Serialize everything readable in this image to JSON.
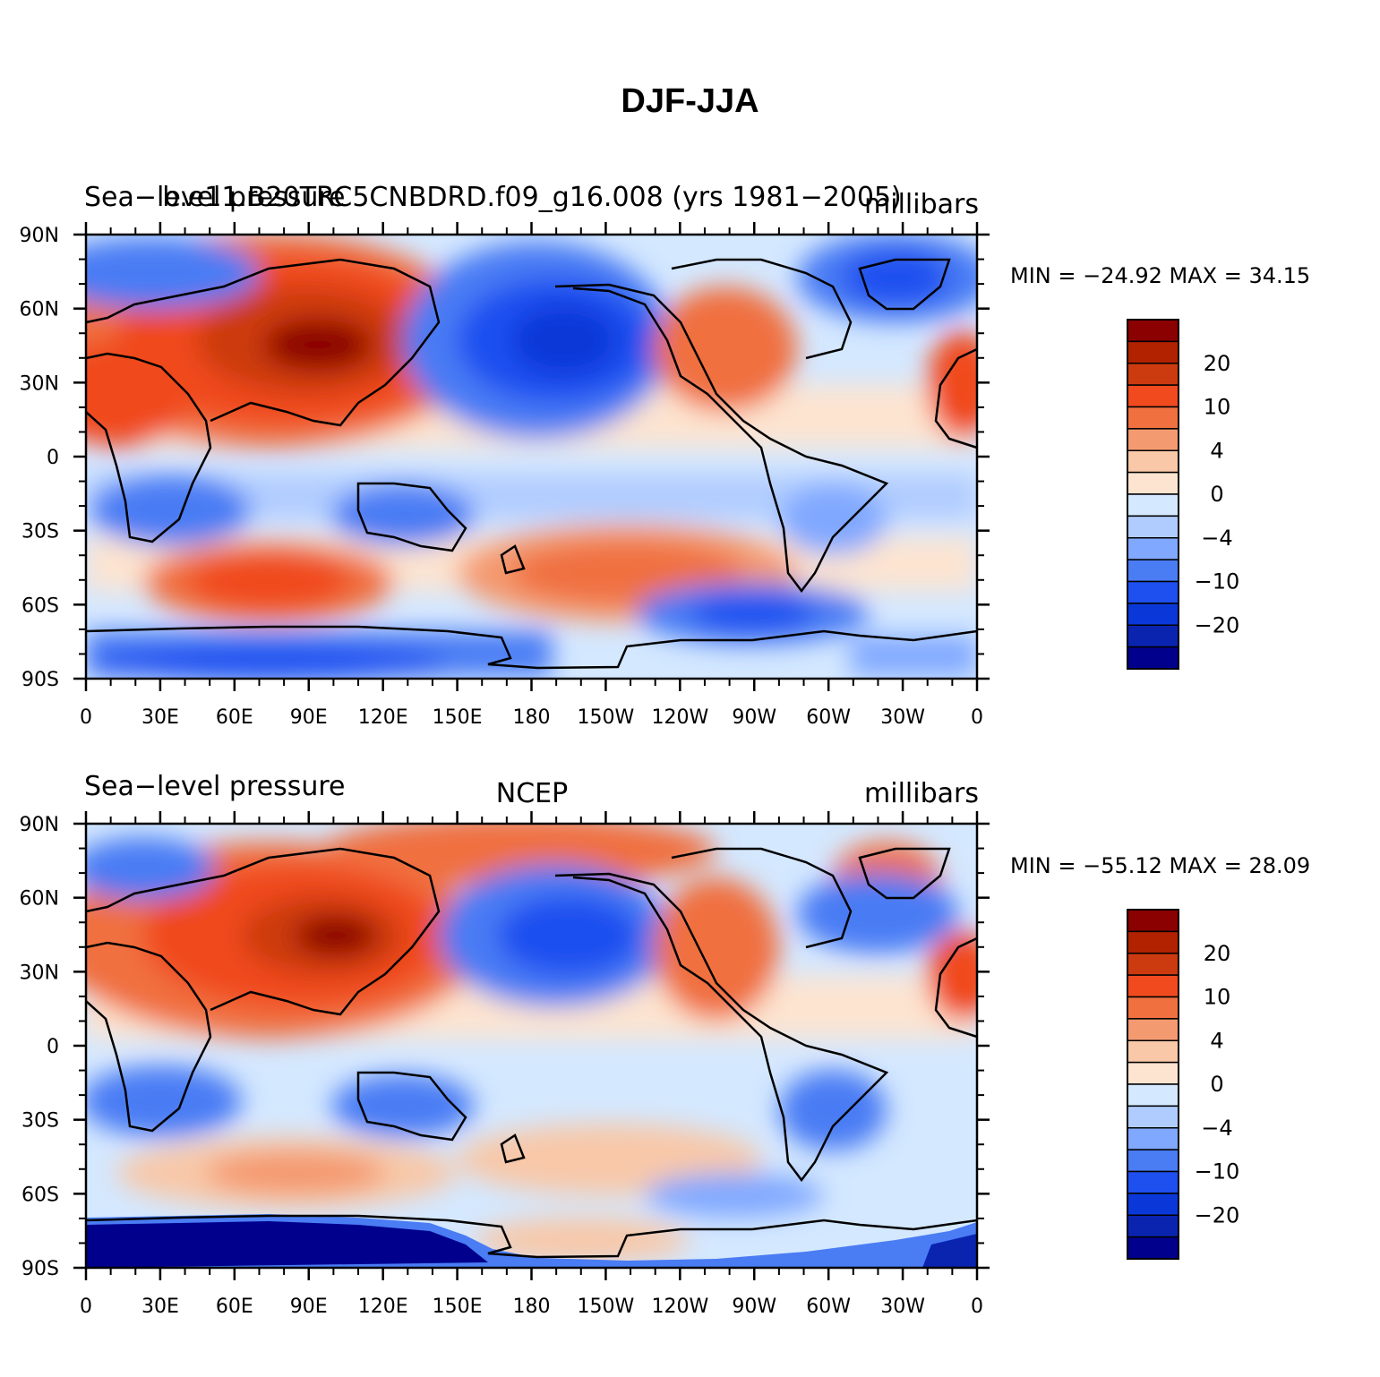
{
  "figure_title": "DJF-JJA",
  "colorbar": {
    "labels": [
      "20",
      "10",
      "4",
      "0",
      "−4",
      "−10",
      "−20"
    ],
    "colors": [
      "#8b0000",
      "#b22200",
      "#cc3a10",
      "#f04a1e",
      "#f07040",
      "#f49a70",
      "#f8c8a8",
      "#fde4d0",
      "#d4e8ff",
      "#b0ccff",
      "#80a8ff",
      "#4a7cf4",
      "#1e50f0",
      "#0a38d8",
      "#0a24b0",
      "#00008c"
    ]
  },
  "chart_data": [
    {
      "type": "contour_map",
      "left_title": "Sea−level pressure",
      "center_title": "b.e11.B20TRC5CNBDRD.f09_g16.008 (yrs 1981−2005)",
      "right_title": "millibars",
      "min_max_text": "MIN = −24.92  MAX =   34.15",
      "min": -24.92,
      "max": 34.15,
      "x_ticks": [
        "0",
        "30E",
        "60E",
        "90E",
        "120E",
        "150E",
        "180",
        "150W",
        "120W",
        "90W",
        "60W",
        "30W",
        "0"
      ],
      "y_ticks": [
        "90N",
        "60N",
        "30N",
        "0",
        "30S",
        "60S",
        "90S"
      ],
      "xlim": [
        0,
        360
      ],
      "ylim": [
        -90,
        90
      ]
    },
    {
      "type": "contour_map",
      "left_title": "Sea−level pressure",
      "center_title": "NCEP",
      "right_title": "millibars",
      "min_max_text": "MIN = −55.12  MAX =   28.09",
      "min": -55.12,
      "max": 28.09,
      "x_ticks": [
        "0",
        "30E",
        "60E",
        "90E",
        "120E",
        "150E",
        "180",
        "150W",
        "120W",
        "90W",
        "60W",
        "30W",
        "0"
      ],
      "y_ticks": [
        "90N",
        "60N",
        "30N",
        "0",
        "30S",
        "60S",
        "90S"
      ],
      "xlim": [
        0,
        360
      ],
      "ylim": [
        -90,
        90
      ]
    }
  ]
}
